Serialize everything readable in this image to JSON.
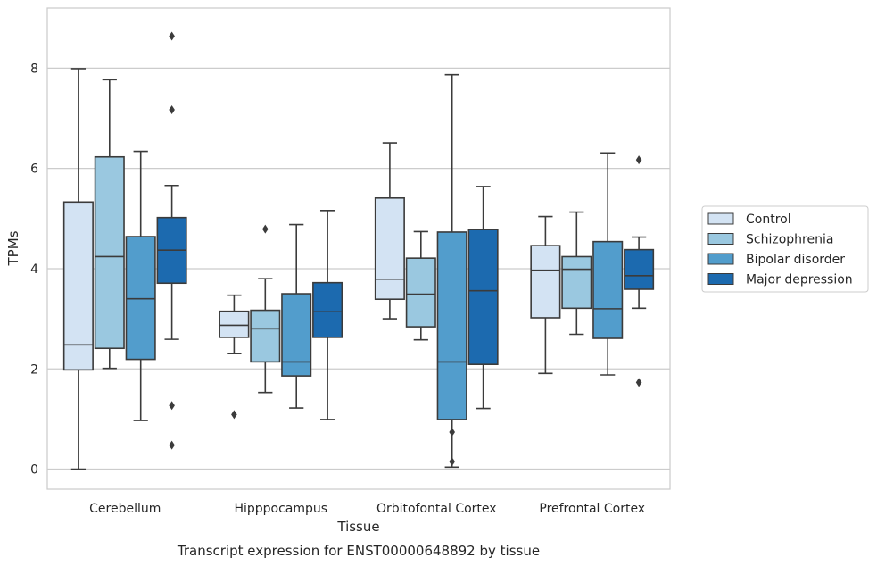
{
  "chart_data": {
    "type": "box",
    "title": "",
    "caption": "Transcript expression for ENST00000648892 by tissue",
    "xlabel": "Tissue",
    "ylabel": "TPMs",
    "ylim": [
      -0.4,
      9.2
    ],
    "yticks": [
      0,
      2,
      4,
      6,
      8
    ],
    "grid": "horizontal",
    "legend_position": "right",
    "categories": [
      "Cerebellum",
      "Hipppocampus",
      "Orbitofontal Cortex",
      "Prefrontal Cortex"
    ],
    "series": [
      {
        "name": "Control",
        "color": "#d3e3f3",
        "boxes": [
          {
            "whislo": 0.0,
            "q1": 1.98,
            "med": 2.48,
            "q3": 5.33,
            "whishi": 7.99,
            "fliers": []
          },
          {
            "whislo": 2.31,
            "q1": 2.63,
            "med": 2.87,
            "q3": 3.15,
            "whislo_note": "",
            "whishi": 3.47,
            "fliers": [
              1.09
            ]
          },
          {
            "whislo": 3.0,
            "q1": 3.39,
            "med": 3.79,
            "q3": 5.41,
            "whishi": 6.51,
            "fliers": []
          },
          {
            "whislo": 1.91,
            "q1": 3.02,
            "med": 3.97,
            "q3": 4.46,
            "whishi": 5.04,
            "fliers": []
          }
        ]
      },
      {
        "name": "Schizophrenia",
        "color": "#9ac8e0",
        "boxes": [
          {
            "whislo": 2.01,
            "q1": 2.41,
            "med": 4.24,
            "q3": 6.23,
            "whishi": 7.77,
            "fliers": []
          },
          {
            "whislo": 1.53,
            "q1": 2.14,
            "med": 2.8,
            "q3": 3.17,
            "whishi": 3.8,
            "fliers": [
              4.79
            ]
          },
          {
            "whislo": 2.58,
            "q1": 2.84,
            "med": 3.49,
            "q3": 4.21,
            "whishi": 4.74,
            "fliers": []
          },
          {
            "whislo": 2.69,
            "q1": 3.21,
            "med": 3.99,
            "q3": 4.24,
            "whishi": 5.13,
            "fliers": []
          }
        ]
      },
      {
        "name": "Bipolar disorder",
        "color": "#529dcc",
        "boxes": [
          {
            "whislo": 0.97,
            "q1": 2.19,
            "med": 3.4,
            "q3": 4.64,
            "whishi": 6.34,
            "fliers": []
          },
          {
            "whislo": 1.22,
            "q1": 1.86,
            "med": 2.14,
            "q3": 3.5,
            "whishi": 4.88,
            "fliers": []
          },
          {
            "whislo": 0.04,
            "q1": 0.99,
            "med": 2.14,
            "q3": 4.73,
            "whishi": 7.87,
            "fliers": [
              0.74,
              0.15
            ]
          },
          {
            "whislo": 1.88,
            "q1": 2.61,
            "med": 3.2,
            "q3": 4.54,
            "whishi": 6.31,
            "fliers": []
          }
        ]
      },
      {
        "name": "Major depression",
        "color": "#1c6aaf",
        "boxes": [
          {
            "whislo": 2.59,
            "q1": 3.71,
            "med": 4.37,
            "q3": 5.02,
            "whishi": 5.66,
            "fliers": [
              8.64,
              7.17,
              1.27,
              0.48
            ]
          },
          {
            "whislo": 0.99,
            "q1": 2.63,
            "med": 3.14,
            "q3": 3.72,
            "whishi": 5.16,
            "fliers": []
          },
          {
            "whislo": 1.21,
            "q1": 2.09,
            "med": 3.56,
            "q3": 4.78,
            "whishi": 5.64,
            "fliers": []
          },
          {
            "whislo": 3.21,
            "q1": 3.59,
            "med": 3.86,
            "q3": 4.38,
            "whishi": 4.63,
            "fliers": [
              6.17,
              1.73
            ]
          }
        ]
      }
    ]
  }
}
